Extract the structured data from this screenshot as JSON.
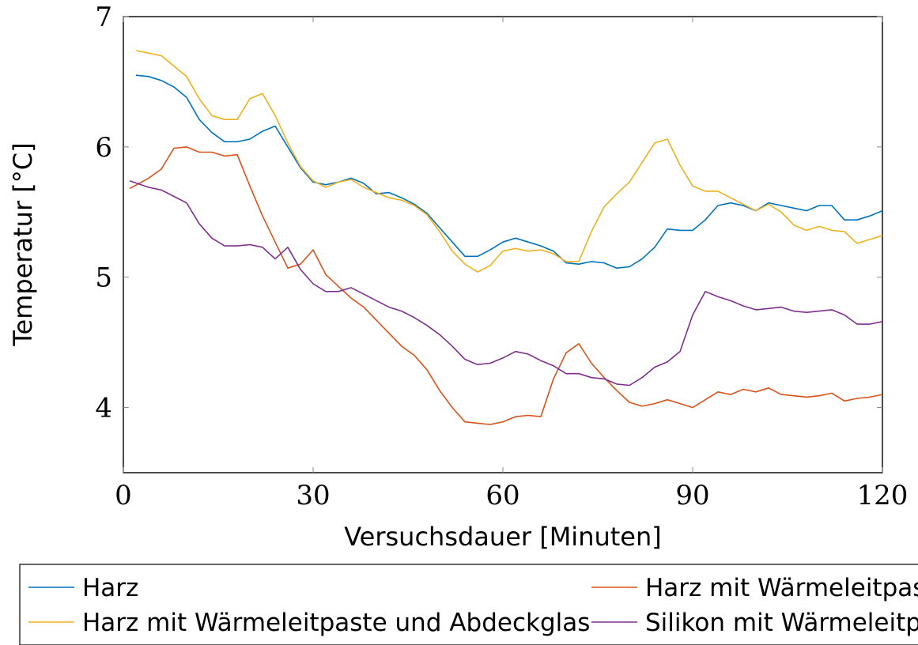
{
  "chart_data": {
    "type": "line",
    "xlabel": "Versuchsdauer [Minuten]",
    "ylabel": "Temperatur [°C]",
    "xlim": [
      0,
      120
    ],
    "ylim": [
      3.5,
      7
    ],
    "xticks": [
      0,
      30,
      60,
      90,
      120
    ],
    "yticks": [
      4,
      5,
      6,
      7
    ],
    "grid": false,
    "legend_position": "bottom",
    "series": [
      {
        "name": "Harz",
        "color": "#0072BD",
        "x": [
          2,
          4,
          6,
          8,
          10,
          12,
          14,
          16,
          18,
          20,
          22,
          24,
          26,
          28,
          30,
          32,
          34,
          36,
          38,
          40,
          42,
          44,
          46,
          48,
          50,
          52,
          54,
          56,
          58,
          60,
          62,
          64,
          66,
          68,
          70,
          72,
          74,
          76,
          78,
          80,
          82,
          84,
          86,
          88,
          90,
          92,
          94,
          96,
          98,
          100,
          102,
          104,
          106,
          108,
          110,
          112,
          114,
          116,
          118,
          120
        ],
        "y": [
          6.55,
          6.54,
          6.51,
          6.46,
          6.38,
          6.21,
          6.11,
          6.04,
          6.04,
          6.06,
          6.12,
          6.16,
          6.0,
          5.84,
          5.73,
          5.71,
          5.73,
          5.76,
          5.72,
          5.64,
          5.65,
          5.61,
          5.56,
          5.49,
          5.38,
          5.27,
          5.16,
          5.16,
          5.21,
          5.27,
          5.3,
          5.27,
          5.24,
          5.2,
          5.11,
          5.1,
          5.12,
          5.11,
          5.07,
          5.08,
          5.14,
          5.23,
          5.37,
          5.36,
          5.36,
          5.44,
          5.55,
          5.57,
          5.55,
          5.51,
          5.57,
          5.55,
          5.53,
          5.51,
          5.55,
          5.55,
          5.44,
          5.44,
          5.47,
          5.51
        ]
      },
      {
        "name": "Harz mit Wärmeleitpaste",
        "color": "#D95319",
        "x": [
          1,
          4,
          6,
          8,
          10,
          12,
          14,
          16,
          18,
          20,
          22,
          24,
          26,
          28,
          30,
          32,
          34,
          36,
          38,
          40,
          42,
          44,
          46,
          48,
          50,
          52,
          54,
          56,
          58,
          60,
          62,
          64,
          66,
          68,
          70,
          72,
          74,
          76,
          78,
          80,
          82,
          84,
          86,
          88,
          90,
          92,
          94,
          96,
          98,
          100,
          102,
          104,
          106,
          108,
          110,
          112,
          114,
          116,
          118,
          120
        ],
        "y": [
          5.68,
          5.76,
          5.83,
          5.99,
          6.0,
          5.96,
          5.96,
          5.93,
          5.94,
          5.7,
          5.47,
          5.27,
          5.07,
          5.1,
          5.21,
          5.02,
          4.93,
          4.84,
          4.77,
          4.67,
          4.57,
          4.47,
          4.4,
          4.29,
          4.13,
          4.0,
          3.89,
          3.88,
          3.87,
          3.89,
          3.93,
          3.94,
          3.93,
          4.22,
          4.42,
          4.49,
          4.34,
          4.23,
          4.13,
          4.04,
          4.01,
          4.03,
          4.06,
          4.03,
          4.0,
          4.06,
          4.12,
          4.1,
          4.14,
          4.12,
          4.15,
          4.1,
          4.09,
          4.08,
          4.09,
          4.11,
          4.05,
          4.07,
          4.08,
          4.1
        ]
      },
      {
        "name": "Harz mit Wärmeleitpaste und Abdeckglas",
        "color": "#EDB120",
        "x": [
          2,
          4,
          6,
          8,
          10,
          12,
          14,
          16,
          18,
          20,
          22,
          24,
          26,
          28,
          30,
          32,
          34,
          36,
          38,
          40,
          42,
          44,
          46,
          48,
          50,
          52,
          54,
          56,
          58,
          60,
          62,
          64,
          66,
          68,
          70,
          72,
          74,
          76,
          78,
          80,
          82,
          84,
          86,
          88,
          90,
          92,
          94,
          96,
          98,
          100,
          102,
          104,
          106,
          108,
          110,
          112,
          114,
          116,
          118,
          120
        ],
        "y": [
          6.74,
          6.72,
          6.7,
          6.62,
          6.54,
          6.37,
          6.24,
          6.21,
          6.21,
          6.37,
          6.41,
          6.24,
          6.03,
          5.85,
          5.74,
          5.69,
          5.73,
          5.75,
          5.69,
          5.65,
          5.61,
          5.59,
          5.55,
          5.48,
          5.35,
          5.2,
          5.1,
          5.04,
          5.09,
          5.2,
          5.22,
          5.2,
          5.21,
          5.18,
          5.12,
          5.12,
          5.35,
          5.54,
          5.64,
          5.73,
          5.88,
          6.03,
          6.06,
          5.86,
          5.7,
          5.66,
          5.66,
          5.61,
          5.56,
          5.51,
          5.56,
          5.5,
          5.4,
          5.36,
          5.39,
          5.36,
          5.35,
          5.26,
          5.29,
          5.32
        ]
      },
      {
        "name": "Silikon mit Wärmeleitpaste",
        "color": "#7E2F8E",
        "x": [
          1,
          4,
          6,
          8,
          10,
          12,
          14,
          16,
          18,
          20,
          22,
          24,
          26,
          28,
          30,
          32,
          34,
          36,
          38,
          40,
          42,
          44,
          46,
          48,
          50,
          52,
          54,
          56,
          58,
          60,
          62,
          64,
          66,
          68,
          70,
          72,
          74,
          76,
          78,
          80,
          82,
          84,
          86,
          88,
          90,
          92,
          94,
          96,
          98,
          100,
          102,
          104,
          106,
          108,
          110,
          112,
          114,
          116,
          118,
          120
        ],
        "y": [
          5.74,
          5.69,
          5.67,
          5.62,
          5.57,
          5.41,
          5.3,
          5.24,
          5.24,
          5.25,
          5.23,
          5.14,
          5.23,
          5.06,
          4.95,
          4.89,
          4.89,
          4.92,
          4.87,
          4.82,
          4.77,
          4.74,
          4.69,
          4.63,
          4.56,
          4.47,
          4.37,
          4.33,
          4.34,
          4.38,
          4.43,
          4.41,
          4.36,
          4.32,
          4.26,
          4.26,
          4.23,
          4.22,
          4.18,
          4.17,
          4.23,
          4.31,
          4.35,
          4.43,
          4.71,
          4.89,
          4.85,
          4.82,
          4.78,
          4.75,
          4.76,
          4.77,
          4.74,
          4.73,
          4.74,
          4.75,
          4.71,
          4.64,
          4.64,
          4.66
        ]
      }
    ]
  }
}
